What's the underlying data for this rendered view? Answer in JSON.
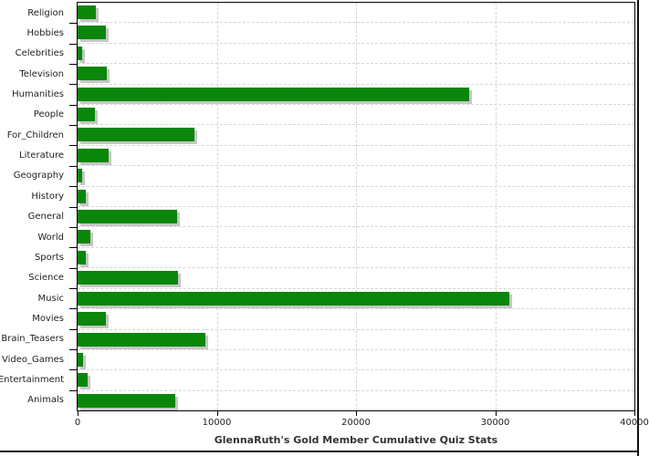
{
  "chart_data": {
    "type": "bar",
    "orientation": "horizontal",
    "title": "GlennaRuth's Gold Member Cumulative Quiz Stats",
    "categories": [
      "Religion",
      "Hobbies",
      "Celebrities",
      "Television",
      "Humanities",
      "People",
      "For_Children",
      "Literature",
      "Geography",
      "History",
      "General",
      "World",
      "Sports",
      "Science",
      "Music",
      "Movies",
      "Brain_Teasers",
      "Video_Games",
      "Entertainment",
      "Animals"
    ],
    "values": [
      1300,
      2000,
      350,
      2100,
      28100,
      1250,
      8400,
      2250,
      350,
      600,
      7150,
      950,
      600,
      7200,
      31000,
      2000,
      9200,
      400,
      750,
      7000
    ],
    "xlabel": "",
    "ylabel": "",
    "xlim": [
      0,
      40000
    ],
    "x_tick_values": [
      0,
      10000,
      20000,
      30000,
      40000
    ],
    "x_tick_labels": [
      "0",
      "10000",
      "20000",
      "30000",
      "40000"
    ],
    "grid": "dashed, horizontal between categories and vertical at major x ticks",
    "legend": "none",
    "colors": {
      "bar": "#0a860a",
      "bar_shadow": "#c6c6c6",
      "grid": "#d6d6d6",
      "axis": "#000000",
      "label_text": "#1f1f1f",
      "title_text": "#333333",
      "background": "#ffffff"
    }
  }
}
